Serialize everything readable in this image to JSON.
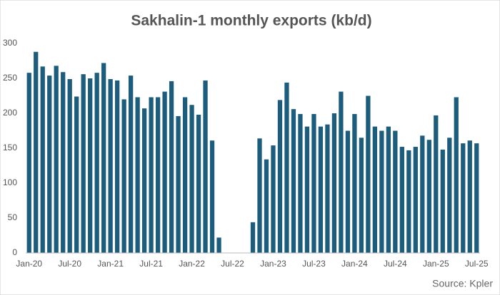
{
  "chart_data": {
    "type": "bar",
    "title": "Sakhalin-1 monthly exports (kb/d)",
    "source": "Source: Kpler",
    "categories": [
      "Jan-20",
      null,
      null,
      null,
      null,
      null,
      "Jul-20",
      null,
      null,
      null,
      null,
      null,
      "Jan-21",
      null,
      null,
      null,
      null,
      null,
      "Jul-21",
      null,
      null,
      null,
      null,
      null,
      "Jan-22",
      null,
      null,
      null,
      null,
      null,
      "Jul-22",
      null,
      null,
      null,
      null,
      null,
      "Jan-23",
      null,
      null,
      null,
      null,
      null,
      "Jul-23",
      null,
      null,
      null,
      null,
      null,
      "Jan-24",
      null,
      null,
      null,
      null,
      null,
      "Jul-24",
      null,
      null,
      null,
      null,
      null,
      "Jan-25",
      null,
      null,
      null,
      null,
      null,
      "Jul-25"
    ],
    "values": [
      258,
      288,
      267,
      254,
      268,
      259,
      249,
      224,
      256,
      250,
      258,
      272,
      249,
      247,
      220,
      254,
      223,
      207,
      223,
      223,
      231,
      246,
      196,
      223,
      212,
      198,
      247,
      161,
      22,
      0,
      0,
      0,
      0,
      44,
      164,
      134,
      154,
      219,
      244,
      206,
      199,
      181,
      199,
      181,
      184,
      200,
      231,
      175,
      199,
      165,
      225,
      181,
      175,
      181,
      175,
      152,
      147,
      152,
      168,
      162,
      197,
      148,
      165,
      223,
      157,
      161,
      157
    ],
    "color": "#1c5c7c",
    "ylim": [
      0,
      300
    ],
    "yticks": [
      0,
      50,
      100,
      150,
      200,
      250,
      300
    ],
    "grid": false
  }
}
